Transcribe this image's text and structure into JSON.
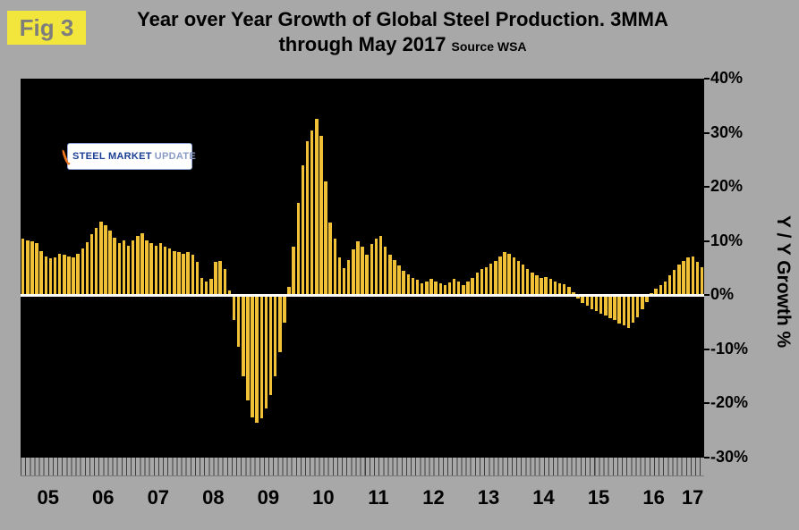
{
  "fig_label": "Fig 3",
  "title_line1": "Year over Year Growth of Global Steel Production. 3MMA",
  "title_line2": "through May 2017",
  "title_source": "Source WSA",
  "y_axis_title": "Y / Y Growth %",
  "logo": {
    "part1": "STEEL",
    "part2": "MARKET",
    "part3": "UPDATE"
  },
  "colors": {
    "page_background": "#a8a8a8",
    "plot_background": "#000000",
    "bar": "#f0c137",
    "zero_line": "#ffffff",
    "fig_box_background": "#f2e63c",
    "fig_box_text": "#7d7d7d",
    "logo_text_blue": "#1b3f94",
    "logo_swoosh_orange": "#f07820"
  },
  "chart_data": {
    "type": "bar",
    "title": "Year over Year Growth of Global Steel Production. 3MMA through May 2017",
    "source": "Source WSA",
    "ylabel": "Y / Y Growth %",
    "ylim": [
      -30,
      40
    ],
    "y_ticks": [
      40,
      30,
      20,
      10,
      0,
      -10,
      -20,
      -30
    ],
    "y_tick_suffix": "%",
    "grid": false,
    "x_unit": "month",
    "x_start": "2005-01",
    "x_end": "2017-05",
    "year_labels": [
      "05",
      "06",
      "07",
      "08",
      "09",
      "10",
      "11",
      "12",
      "13",
      "14",
      "15",
      "16",
      "17"
    ],
    "months_per_year": [
      12,
      12,
      12,
      12,
      12,
      12,
      12,
      12,
      12,
      12,
      12,
      12,
      5
    ],
    "values": [
      10.5,
      10.2,
      10.0,
      9.6,
      8.2,
      7.2,
      6.8,
      7.0,
      7.6,
      7.4,
      7.2,
      7.0,
      7.6,
      8.6,
      9.8,
      11.2,
      12.4,
      13.6,
      13.0,
      12.0,
      10.6,
      9.6,
      10.2,
      9.2,
      10.2,
      11.0,
      11.4,
      10.2,
      9.6,
      9.2,
      9.6,
      9.0,
      8.6,
      8.2,
      8.0,
      7.6,
      8.0,
      7.4,
      6.2,
      3.2,
      2.6,
      3.0,
      6.2,
      6.4,
      4.8,
      0.8,
      -4.5,
      -9.5,
      -15.0,
      -19.5,
      -22.5,
      -23.5,
      -22.8,
      -21.0,
      -18.5,
      -15.0,
      -10.5,
      -5.0,
      1.5,
      9.0,
      17.0,
      24.0,
      28.5,
      30.5,
      32.5,
      29.5,
      21.0,
      13.5,
      10.5,
      7.0,
      5.0,
      6.5,
      8.5,
      10.0,
      9.0,
      7.5,
      9.5,
      10.5,
      11.0,
      9.0,
      7.5,
      6.5,
      5.5,
      4.5,
      3.8,
      3.2,
      2.8,
      2.2,
      2.6,
      3.0,
      2.6,
      2.2,
      1.8,
      2.4,
      3.0,
      2.6,
      1.8,
      2.6,
      3.2,
      4.2,
      4.8,
      5.2,
      5.8,
      6.4,
      7.2,
      8.0,
      7.6,
      7.0,
      6.4,
      5.6,
      4.8,
      4.2,
      3.6,
      3.2,
      3.4,
      3.0,
      2.6,
      2.2,
      2.0,
      1.6,
      0.6,
      -0.6,
      -1.4,
      -2.0,
      -2.6,
      -3.0,
      -3.4,
      -3.8,
      -4.2,
      -4.6,
      -5.2,
      -5.6,
      -6.0,
      -5.0,
      -4.0,
      -2.6,
      -1.2,
      0.4,
      1.2,
      1.8,
      2.6,
      3.6,
      4.6,
      5.6,
      6.4,
      7.0,
      7.2,
      6.2,
      5.2
    ]
  }
}
